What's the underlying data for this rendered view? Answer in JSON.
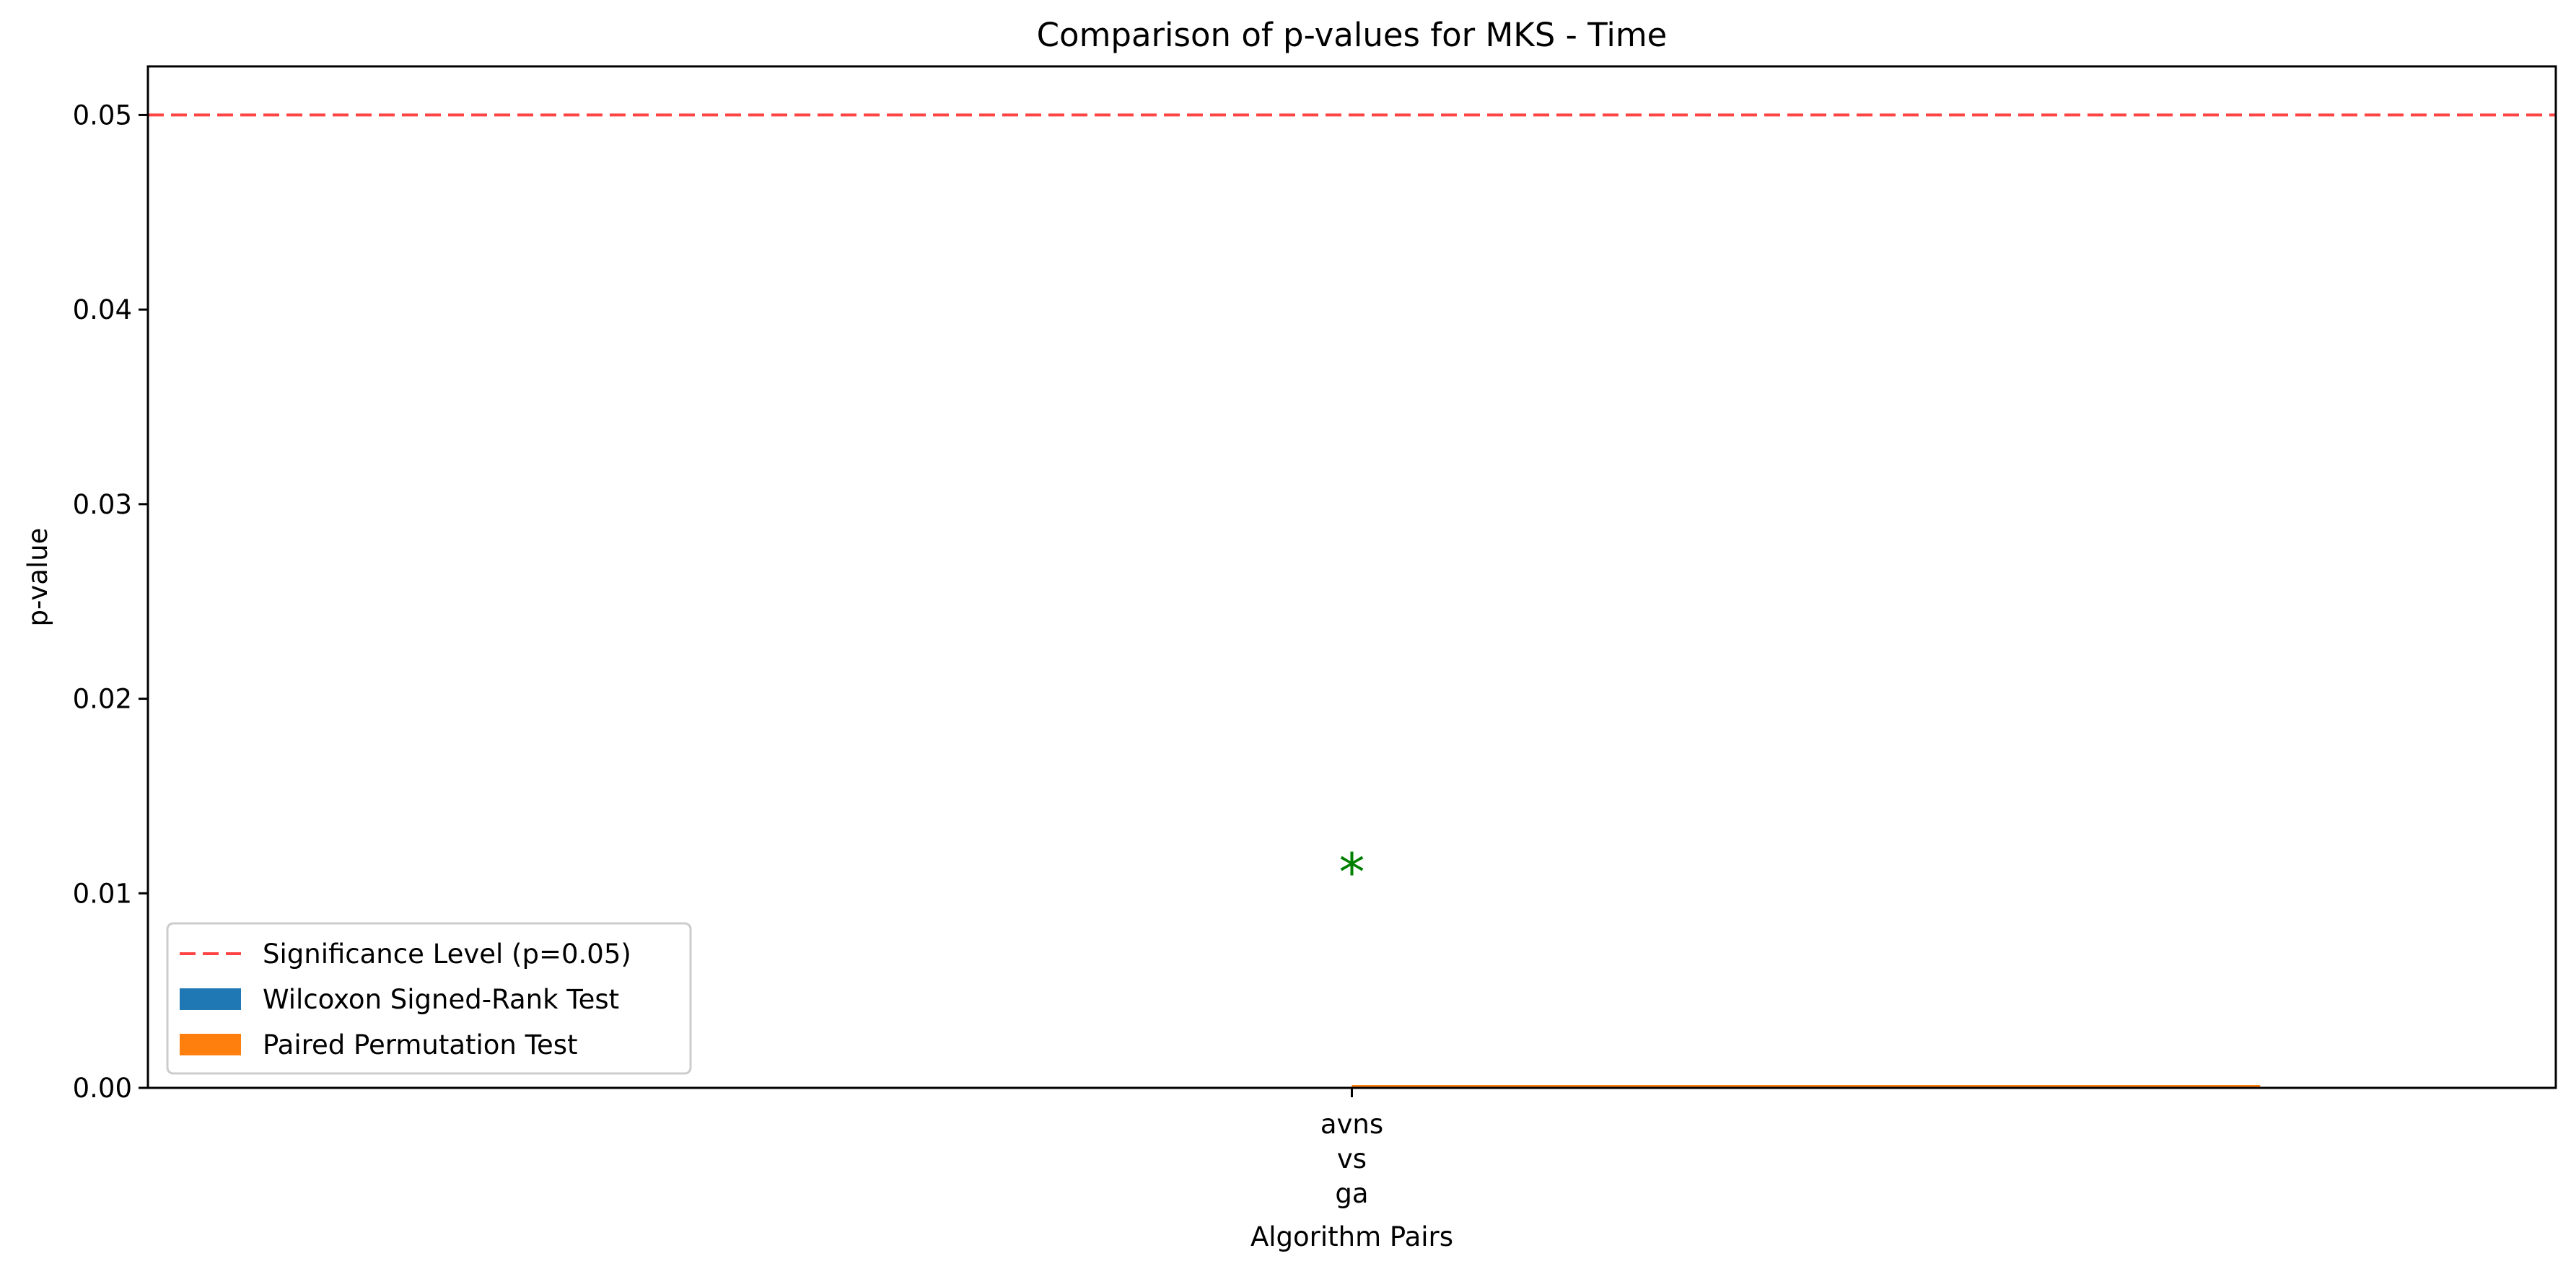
{
  "chart_data": {
    "type": "bar",
    "title": "Comparison of p-values for MKS - Time",
    "xlabel": "Algorithm Pairs",
    "ylabel": "p-value",
    "categories": [
      [
        "avns",
        "vs",
        "ga"
      ]
    ],
    "series": [
      {
        "name": "Wilcoxon Signed-Rank Test",
        "values": [
          0.0
        ],
        "color": "#1f77b4"
      },
      {
        "name": "Paired Permutation Test",
        "values": [
          0.0001
        ],
        "color": "#ff7f0e"
      }
    ],
    "ylim": [
      0,
      0.0525
    ],
    "yticks": [
      0.0,
      0.01,
      0.02,
      0.03,
      0.04,
      0.05
    ],
    "ytick_labels": [
      "0.00",
      "0.01",
      "0.02",
      "0.03",
      "0.04",
      "0.05"
    ],
    "reference_line": {
      "label": "Significance Level (p=0.05)",
      "value": 0.05,
      "color": "#ff4444",
      "style": "dashed"
    },
    "annotations": [
      {
        "category_index": 0,
        "text": "*",
        "y": 0.0115,
        "color": "#008000"
      }
    ],
    "legend_position": "lower-left",
    "grid": false
  }
}
